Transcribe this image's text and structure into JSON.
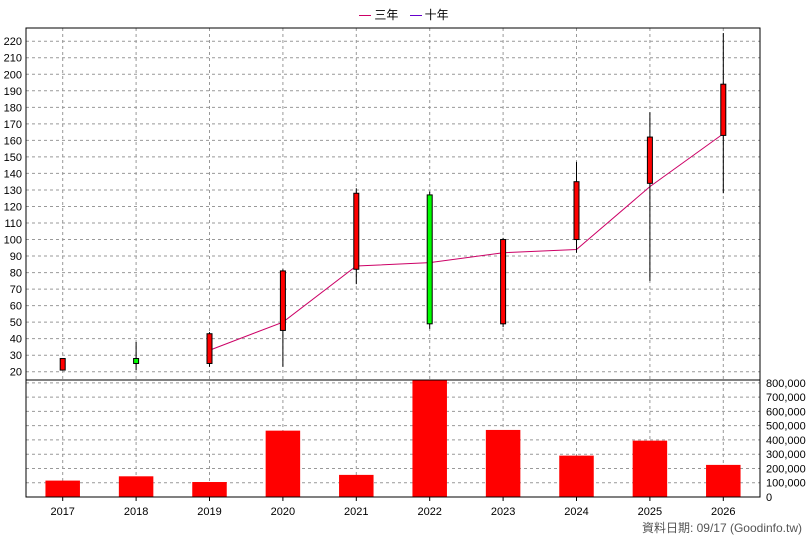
{
  "legend": {
    "items": [
      {
        "label": "三年",
        "color": "#cc0066"
      },
      {
        "label": "十年",
        "color": "#6600cc"
      }
    ]
  },
  "footer": {
    "date_note": "資料日期: 09/17  (Goodinfo.tw)"
  },
  "colors": {
    "up_candle": "#ff0000",
    "down_candle": "#00ff00",
    "volume_bar": "#ff0000",
    "ma_line": "#cc0066",
    "grid": "#999999"
  },
  "chart_data": [
    {
      "type": "candlestick",
      "title": "",
      "ylim": [
        15,
        228
      ],
      "yticks": [
        20,
        30,
        40,
        50,
        60,
        70,
        80,
        90,
        100,
        110,
        120,
        130,
        140,
        150,
        160,
        170,
        180,
        190,
        200,
        210,
        220
      ],
      "grid": true,
      "categories": [
        "2017",
        "2018",
        "2019",
        "2020",
        "2021",
        "2022",
        "2023",
        "2024",
        "2025",
        "2026"
      ],
      "candles": [
        {
          "year": "2017",
          "open": 21,
          "close": 28,
          "high": 28,
          "low": 21
        },
        {
          "year": "2018",
          "open": 28,
          "close": 25,
          "high": 38,
          "low": 21
        },
        {
          "year": "2019",
          "open": 25,
          "close": 43,
          "high": 44,
          "low": 23
        },
        {
          "year": "2020",
          "open": 45,
          "close": 81,
          "high": 82,
          "low": 23
        },
        {
          "year": "2021",
          "open": 82,
          "close": 128,
          "high": 131,
          "low": 73
        },
        {
          "year": "2022",
          "open": 127,
          "close": 49,
          "high": 129,
          "low": 46
        },
        {
          "year": "2023",
          "open": 49,
          "close": 100,
          "high": 101,
          "low": 47
        },
        {
          "year": "2024",
          "open": 100,
          "close": 135,
          "high": 147,
          "low": 92
        },
        {
          "year": "2025",
          "open": 134,
          "close": 162,
          "high": 177,
          "low": 75
        },
        {
          "year": "2026",
          "open": 163,
          "close": 194,
          "high": 225,
          "low": 128
        }
      ],
      "series": [
        {
          "name": "三年",
          "x": [
            "2019",
            "2020",
            "2021",
            "2022",
            "2023",
            "2024",
            "2025",
            "2026"
          ],
          "values": [
            33,
            50,
            84,
            86,
            92,
            94,
            132,
            164
          ]
        }
      ]
    },
    {
      "type": "bar",
      "title": "",
      "ylim": [
        0,
        820000
      ],
      "yticks": [
        0,
        100000,
        200000,
        300000,
        400000,
        500000,
        600000,
        700000,
        800000
      ],
      "ytick_labels": [
        "0",
        "100,000",
        "200,000",
        "300,000",
        "400,000",
        "500,000",
        "600,000",
        "700,000",
        "800,000"
      ],
      "grid": true,
      "categories": [
        "2017",
        "2018",
        "2019",
        "2020",
        "2021",
        "2022",
        "2023",
        "2024",
        "2025",
        "2026"
      ],
      "values": [
        115000,
        145000,
        105000,
        465000,
        155000,
        825000,
        470000,
        290000,
        395000,
        225000
      ]
    }
  ]
}
